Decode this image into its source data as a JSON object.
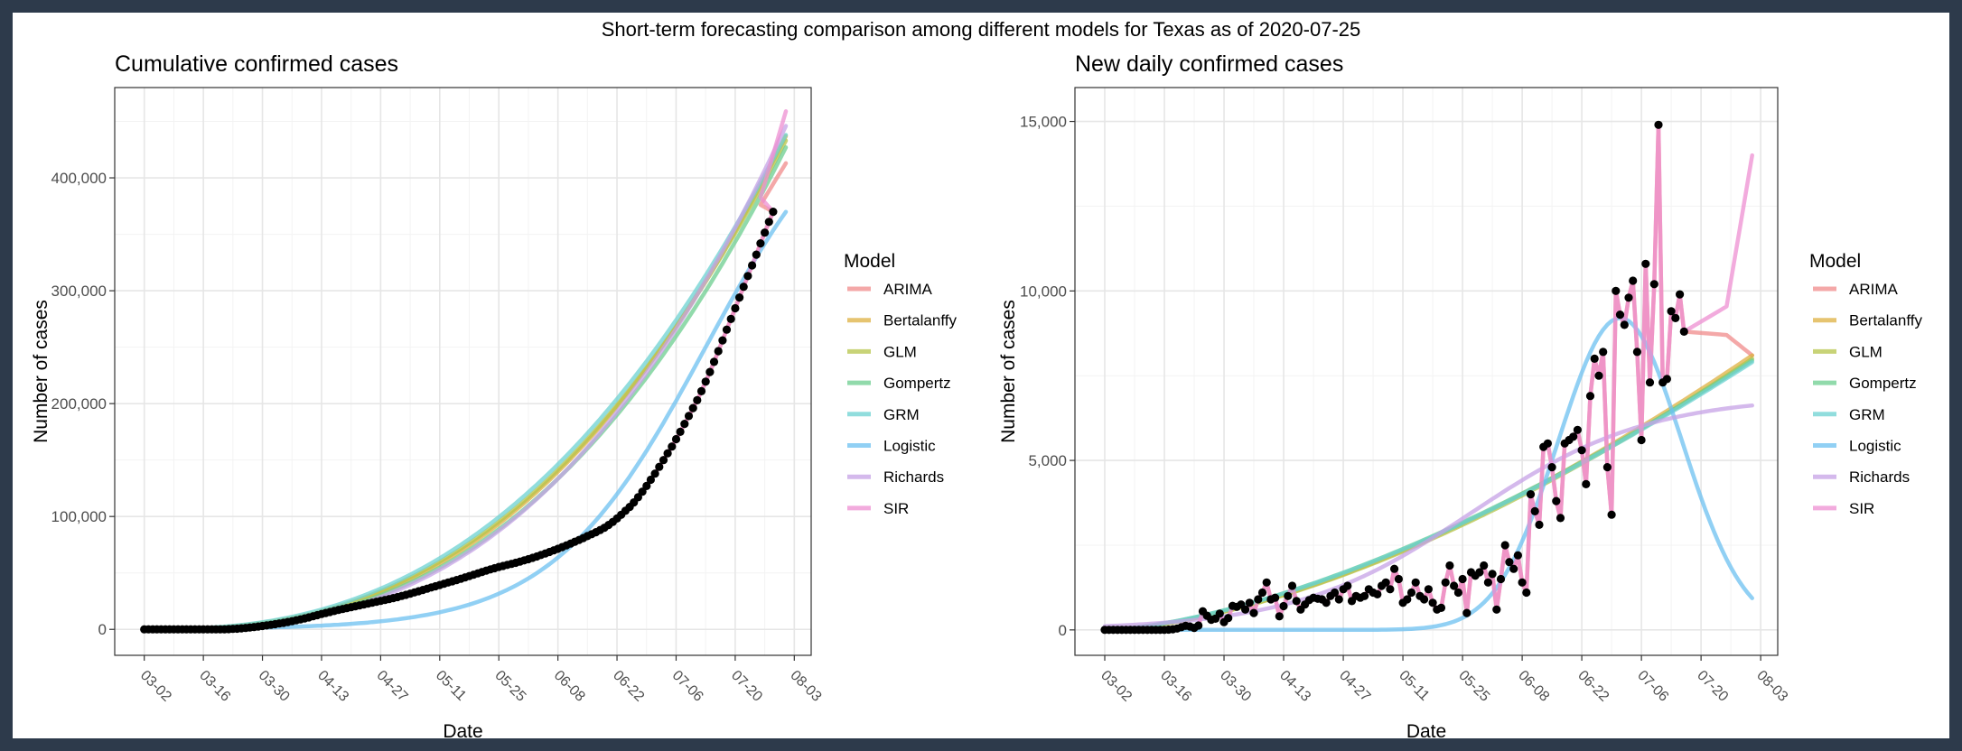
{
  "figure": {
    "suptitle": "Short-term forecasting comparison among different models for Texas as of 2020-07-25",
    "legend_title": "Model",
    "model_colors": {
      "ARIMA": "#f08b8b",
      "Bertalanffy": "#ddb040",
      "GLM": "#b5c44a",
      "Gompertz": "#6cce8f",
      "GRM": "#6cd2d2",
      "Logistic": "#6cc0f0",
      "Richards": "#c5a2e5",
      "SIR": "#ee8fd2"
    }
  },
  "chart_data": [
    {
      "type": "line",
      "title": "Cumulative confirmed cases",
      "xlabel": "Date",
      "ylabel": "Number of cases",
      "x_ticks": [
        "03-02",
        "03-16",
        "03-30",
        "04-13",
        "04-27",
        "05-11",
        "05-25",
        "06-08",
        "06-22",
        "07-06",
        "07-20",
        "08-03"
      ],
      "x_range_days": [
        -7,
        158
      ],
      "y_ticks": [
        0,
        100000,
        200000,
        300000,
        400000
      ],
      "y_tick_labels": [
        "0",
        "100,000",
        "200,000",
        "300,000",
        "400,000"
      ],
      "ylim": [
        -23000,
        480000
      ],
      "grid": true,
      "legend_position": "right",
      "observed": {
        "start_date": "03-02",
        "end_date": "07-25",
        "values": [
          0,
          0,
          0,
          0,
          0,
          0,
          0,
          0,
          0,
          0,
          0,
          0,
          0,
          0,
          0,
          0,
          0,
          0,
          0,
          0,
          200,
          400,
          600,
          900,
          1200,
          1600,
          2000,
          2500,
          3000,
          3500,
          4000,
          4600,
          5200,
          5800,
          6500,
          7200,
          8000,
          8800,
          9700,
          10600,
          11600,
          12600,
          13600,
          14500,
          15400,
          16300,
          17200,
          18000,
          18800,
          19600,
          20400,
          21200,
          22000,
          22800,
          23600,
          24400,
          25200,
          26000,
          26800,
          27700,
          28600,
          29600,
          30600,
          31600,
          32700,
          33800,
          34900,
          36000,
          37100,
          38200,
          39300,
          40400,
          41500,
          42600,
          43700,
          44800,
          46000,
          47200,
          48400,
          49600,
          50800,
          52000,
          53100,
          54200,
          55300,
          56200,
          57100,
          58000,
          59000,
          60000,
          61100,
          62200,
          63400,
          64600,
          65900,
          67200,
          68600,
          70000,
          71400,
          72900,
          74400,
          76000,
          77600,
          79200,
          80900,
          82600,
          84300,
          86100,
          88000,
          90000,
          92500,
          95200,
          98200,
          101500,
          105000,
          108500,
          112500,
          117000,
          122000,
          127000,
          132500,
          138000,
          144000,
          150000,
          156000,
          162000,
          168500,
          175000,
          182000,
          189000,
          196000,
          203000,
          211000,
          219500,
          228000,
          237000,
          246500,
          256000,
          265500,
          275000,
          284500,
          294000,
          303500,
          313000,
          322500,
          332000,
          342000,
          351500,
          361000,
          370000
        ]
      },
      "series": [
        {
          "name": "ARIMA",
          "model": "obs_then",
          "end_date": "08-01",
          "end_value": 413000
        },
        {
          "name": "Bertalanffy",
          "model": "power",
          "scale": 437000,
          "power": 2.6
        },
        {
          "name": "GLM",
          "model": "power",
          "scale": 433000,
          "power": 2.55
        },
        {
          "name": "Gompertz",
          "model": "power",
          "scale": 427000,
          "power": 2.65
        },
        {
          "name": "GRM",
          "model": "power",
          "scale": 438000,
          "power": 2.5
        },
        {
          "name": "Logistic",
          "model": "logistic",
          "capacity": 500000,
          "rate": 0.055,
          "midpoint_date": "07-13"
        },
        {
          "name": "Richards",
          "model": "power",
          "scale": 446000,
          "power": 2.75
        },
        {
          "name": "SIR",
          "model": "obs_then",
          "end_date": "08-01",
          "end_value": 459000
        }
      ]
    },
    {
      "type": "line",
      "title": "New daily confirmed cases",
      "xlabel": "Date",
      "ylabel": "Number of cases",
      "x_ticks": [
        "03-02",
        "03-16",
        "03-30",
        "04-13",
        "04-27",
        "05-11",
        "05-25",
        "06-08",
        "06-22",
        "07-06",
        "07-20",
        "08-03"
      ],
      "x_range_days": [
        -7,
        158
      ],
      "y_ticks": [
        0,
        5000,
        10000,
        15000
      ],
      "y_tick_labels": [
        "0",
        "5,000",
        "10,000",
        "15,000"
      ],
      "ylim": [
        -750,
        16000
      ],
      "grid": true,
      "legend_position": "right",
      "observed": {
        "start_date": "03-02",
        "end_date": "07-25",
        "values": [
          0,
          0,
          0,
          0,
          0,
          0,
          0,
          0,
          0,
          0,
          0,
          0,
          0,
          0,
          0,
          10,
          20,
          40,
          80,
          120,
          100,
          60,
          130,
          550,
          420,
          300,
          330,
          480,
          230,
          350,
          710,
          680,
          750,
          600,
          800,
          500,
          900,
          1100,
          1400,
          900,
          950,
          400,
          700,
          1000,
          1300,
          850,
          600,
          750,
          880,
          950,
          920,
          900,
          800,
          1000,
          1100,
          900,
          1200,
          1300,
          850,
          1000,
          950,
          1000,
          1200,
          1100,
          1050,
          1300,
          1400,
          1200,
          1800,
          1500,
          800,
          900,
          1100,
          1400,
          1000,
          900,
          1200,
          800,
          600,
          650,
          1400,
          1900,
          1300,
          1100,
          1500,
          500,
          1700,
          1600,
          1700,
          1900,
          1400,
          1650,
          600,
          1500,
          2500,
          2000,
          1800,
          2200,
          1400,
          1100,
          4000,
          3500,
          3100,
          5400,
          5500,
          4800,
          3800,
          3300,
          5500,
          5600,
          5700,
          5900,
          5300,
          4300,
          6900,
          8000,
          7500,
          8200,
          4800,
          3400,
          10000,
          9300,
          9000,
          9800,
          10300,
          8200,
          5600,
          10800,
          7300,
          10200,
          14900,
          7300,
          7400,
          9400,
          9200,
          9900,
          8800
        ]
      },
      "series": [
        {
          "name": "ARIMA",
          "model": "obs_then",
          "end_date": "08-01",
          "end_value": 8100
        },
        {
          "name": "Bertalanffy",
          "model": "power",
          "scale": 8100,
          "power": 1.6
        },
        {
          "name": "GLM",
          "model": "power",
          "scale": 8000,
          "power": 1.6
        },
        {
          "name": "Gompertz",
          "model": "power",
          "scale": 7950,
          "power": 1.55
        },
        {
          "name": "GRM",
          "model": "power",
          "scale": 7900,
          "power": 1.55
        },
        {
          "name": "Logistic",
          "model": "bell",
          "peak": 9200,
          "peak_date": "07-01",
          "width_days": 14.5
        },
        {
          "name": "Richards",
          "model": "growth_plateau",
          "plateau": 6900,
          "rate": 0.048,
          "midpoint_date": "05-27"
        },
        {
          "name": "SIR",
          "model": "obs_then",
          "end_date": "08-01",
          "end_value": 14000
        }
      ]
    }
  ]
}
